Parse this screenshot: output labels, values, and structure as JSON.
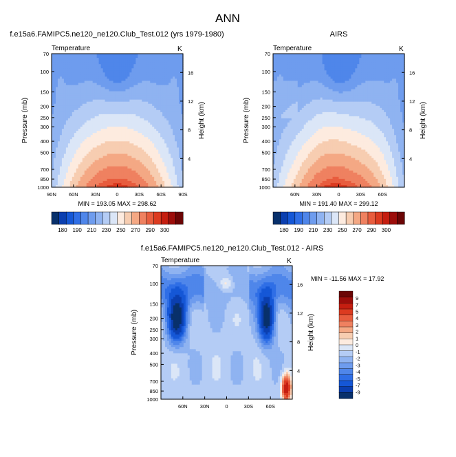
{
  "title": "ANN",
  "colors": {
    "temp_scale": [
      "#08306b",
      "#0b3fb0",
      "#1557d6",
      "#2f6ee6",
      "#4f86ea",
      "#6e9cee",
      "#8fb3f1",
      "#b4ccf5",
      "#dbe6f7",
      "#fdebdf",
      "#f7cdb1",
      "#f4a884",
      "#ef8160",
      "#e85d3e",
      "#dc3b20",
      "#c51e10",
      "#9c0d0a",
      "#6b0505"
    ],
    "diff_scale": [
      "#08306b",
      "#0b3fb0",
      "#1557d6",
      "#2f6ee6",
      "#4f86ea",
      "#6e9cee",
      "#8fb3f1",
      "#b4ccf5",
      "#dbe6f7",
      "#fdebdf",
      "#f7cdb1",
      "#f4a884",
      "#ef8160",
      "#e85d3e",
      "#dc3b20",
      "#c51e10",
      "#9c0d0a",
      "#6b0505"
    ]
  },
  "chart_data": [
    {
      "type": "heatmap",
      "id": "model",
      "title": "f.e15a6.FAMIPC5.ne120_ne120.Club_Test.012 (yrs 1979-1980)",
      "left_label": "Temperature",
      "right_label": "K",
      "ylabel": "Pressure (mb)",
      "ylabel_right": "Height (km)",
      "x_ticks": [
        "90N",
        "60N",
        "30N",
        "0",
        "30S",
        "60S",
        "90S"
      ],
      "x_tick_lat": [
        90,
        60,
        30,
        0,
        -30,
        -60,
        -90
      ],
      "xlim": [
        90,
        -90
      ],
      "y_ticks": [
        "70",
        "100",
        "150",
        "200",
        "250",
        "300",
        "400",
        "500",
        "700",
        "850",
        "1000"
      ],
      "y_tick_p": [
        70,
        100,
        150,
        200,
        250,
        300,
        400,
        500,
        700,
        850,
        1000
      ],
      "height_ticks": [
        "16",
        "12",
        "8",
        "4"
      ],
      "height_tick_km": [
        16,
        12,
        8,
        4
      ],
      "stats": "MIN = 193.05   MAX = 298.62",
      "min": 193.05,
      "max": 298.62,
      "field": "model",
      "colorbar_labels": [
        "180",
        "190",
        "210",
        "230",
        "250",
        "270",
        "290",
        "300"
      ],
      "colorbar_levels": [
        180,
        185,
        190,
        200,
        210,
        220,
        230,
        240,
        250,
        260,
        270,
        280,
        290,
        295,
        300
      ]
    },
    {
      "type": "heatmap",
      "id": "obs",
      "title": "AIRS",
      "left_label": "Temperature",
      "right_label": "K",
      "ylabel": "Pressure (mb)",
      "ylabel_right": "Height (km)",
      "x_ticks": [
        "60N",
        "30N",
        "0",
        "30S",
        "60S"
      ],
      "x_tick_lat": [
        60,
        30,
        0,
        -30,
        -60
      ],
      "xlim": [
        90,
        -90
      ],
      "y_ticks": [
        "70",
        "100",
        "150",
        "200",
        "250",
        "300",
        "400",
        "500",
        "700",
        "850",
        "1000"
      ],
      "y_tick_p": [
        70,
        100,
        150,
        200,
        250,
        300,
        400,
        500,
        700,
        850,
        1000
      ],
      "height_ticks": [
        "16",
        "12",
        "8",
        "4"
      ],
      "height_tick_km": [
        16,
        12,
        8,
        4
      ],
      "stats": "MIN = 191.40   MAX = 299.12",
      "min": 191.4,
      "max": 299.12,
      "field": "obs",
      "colorbar_labels": [
        "180",
        "190",
        "210",
        "230",
        "250",
        "270",
        "290",
        "300"
      ],
      "colorbar_levels": [
        180,
        185,
        190,
        200,
        210,
        220,
        230,
        240,
        250,
        260,
        270,
        280,
        290,
        295,
        300
      ]
    },
    {
      "type": "heatmap",
      "id": "diff",
      "title": "f.e15a6.FAMIPC5.ne120_ne120.Club_Test.012 - AIRS",
      "left_label": "Temperature",
      "right_label": "K",
      "ylabel": "Pressure (mb)",
      "ylabel_right": "Height (km)",
      "x_ticks": [
        "60N",
        "30N",
        "0",
        "30S",
        "60S"
      ],
      "x_tick_lat": [
        60,
        30,
        0,
        -30,
        -60
      ],
      "xlim": [
        90,
        -90
      ],
      "y_ticks": [
        "70",
        "100",
        "150",
        "200",
        "250",
        "300",
        "400",
        "500",
        "700",
        "850",
        "1000"
      ],
      "y_tick_p": [
        70,
        100,
        150,
        200,
        250,
        300,
        400,
        500,
        700,
        850,
        1000
      ],
      "height_ticks": [
        "16",
        "12",
        "8",
        "4"
      ],
      "height_tick_km": [
        16,
        12,
        8,
        4
      ],
      "stats": "MIN = -11.56   MAX =  17.92",
      "min": -11.56,
      "max": 17.92,
      "field": "diff",
      "colorbar_labels": [
        "9",
        "7",
        "5",
        "4",
        "3",
        "2",
        "1",
        "0",
        "-1",
        "-2",
        "-3",
        "-4",
        "-5",
        "-7",
        "-9"
      ],
      "colorbar_levels": [
        -9,
        -7,
        -5,
        -4,
        -3,
        -2,
        -1,
        0,
        1,
        2,
        3,
        4,
        5,
        7,
        9
      ]
    }
  ]
}
